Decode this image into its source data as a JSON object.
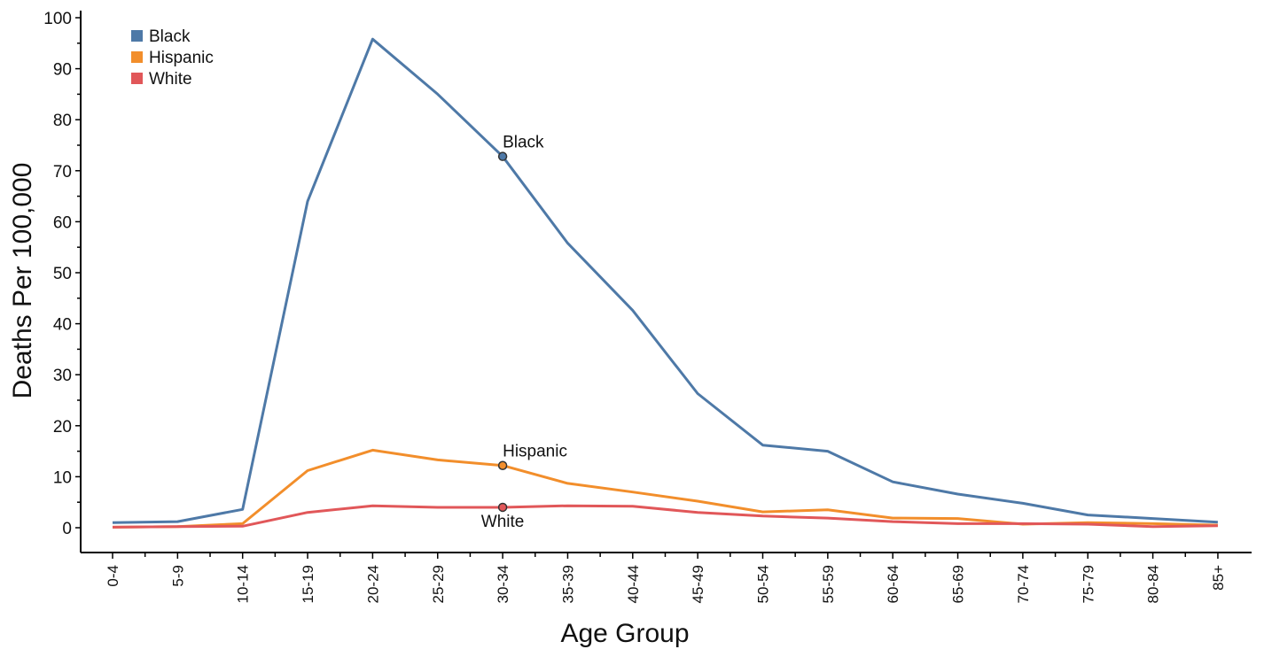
{
  "chart_data": {
    "type": "line",
    "xlabel": "Age Group",
    "ylabel": "Deaths Per 100,000",
    "ylim": [
      0,
      100
    ],
    "yticks": [
      0,
      10,
      20,
      30,
      40,
      50,
      60,
      70,
      80,
      90,
      100
    ],
    "legend_position": "top-left",
    "grid": false,
    "categories": [
      "0-4",
      "5-9",
      "10-14",
      "15-19",
      "20-24",
      "25-29",
      "30-34",
      "35-39",
      "40-44",
      "45-49",
      "50-54",
      "55-59",
      "60-64",
      "65-69",
      "70-74",
      "75-79",
      "80-84",
      "85+"
    ],
    "series": [
      {
        "name": "Black",
        "color": "#4e79a7",
        "values": [
          1.0,
          1.2,
          3.6,
          64.0,
          95.8,
          85.0,
          72.8,
          55.8,
          42.6,
          26.3,
          16.2,
          15.0,
          9.0,
          6.6,
          4.8,
          2.5,
          1.8,
          1.1
        ]
      },
      {
        "name": "Hispanic",
        "color": "#f28e2b",
        "values": [
          0.1,
          0.2,
          0.8,
          11.2,
          15.2,
          13.3,
          12.2,
          8.7,
          7.0,
          5.2,
          3.1,
          3.5,
          1.9,
          1.8,
          0.7,
          1.0,
          0.8,
          0.5
        ]
      },
      {
        "name": "White",
        "color": "#e15759",
        "values": [
          0.1,
          0.2,
          0.3,
          3.0,
          4.3,
          4.0,
          4.0,
          4.3,
          4.2,
          3.0,
          2.3,
          1.9,
          1.2,
          0.8,
          0.8,
          0.7,
          0.2,
          0.4
        ]
      }
    ],
    "annotations": [
      {
        "series": "Black",
        "category": "30-34",
        "value": 72.8,
        "text": "Black",
        "placement": "above"
      },
      {
        "series": "Hispanic",
        "category": "30-34",
        "value": 12.2,
        "text": "Hispanic",
        "placement": "above"
      },
      {
        "series": "White",
        "category": "30-34",
        "value": 4.0,
        "text": "White",
        "placement": "below"
      }
    ]
  }
}
